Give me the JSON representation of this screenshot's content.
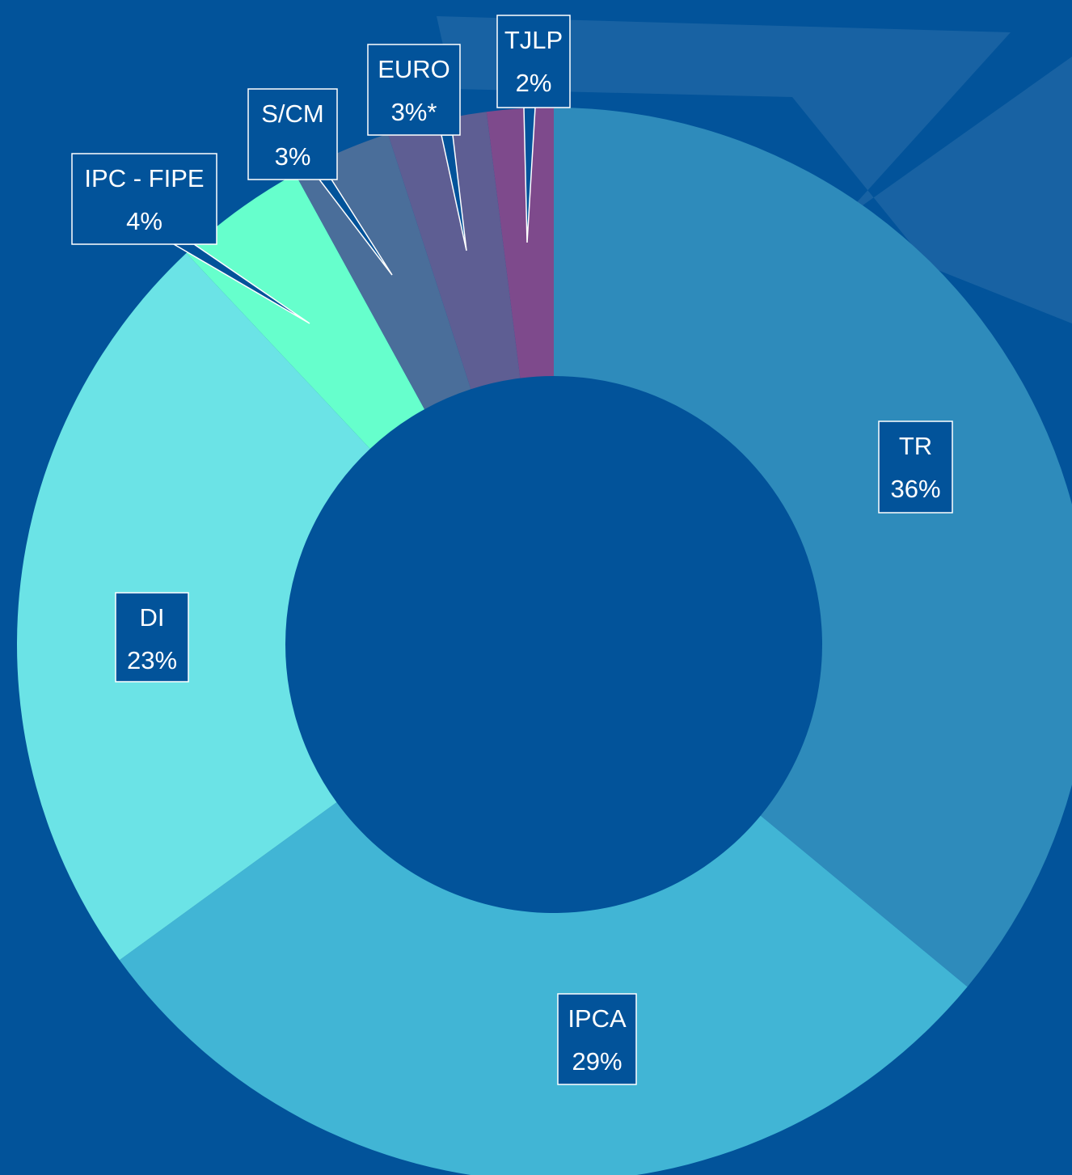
{
  "chart_data": {
    "type": "donut",
    "categories": [
      "TR",
      "IPCA",
      "DI",
      "IPC - FIPE",
      "S/CM",
      "EURO",
      "TJLP"
    ],
    "values": [
      36,
      29,
      23,
      4,
      3,
      3,
      2
    ],
    "value_labels": [
      "36%",
      "29%",
      "23%",
      "4%",
      "3%",
      "3%*",
      "2%"
    ],
    "colors": [
      "#2E8BBB",
      "#41B5D5",
      "#6BE3E6",
      "#66FFCC",
      "#4A6E9A",
      "#5E5E93",
      "#7E4A8C"
    ]
  }
}
